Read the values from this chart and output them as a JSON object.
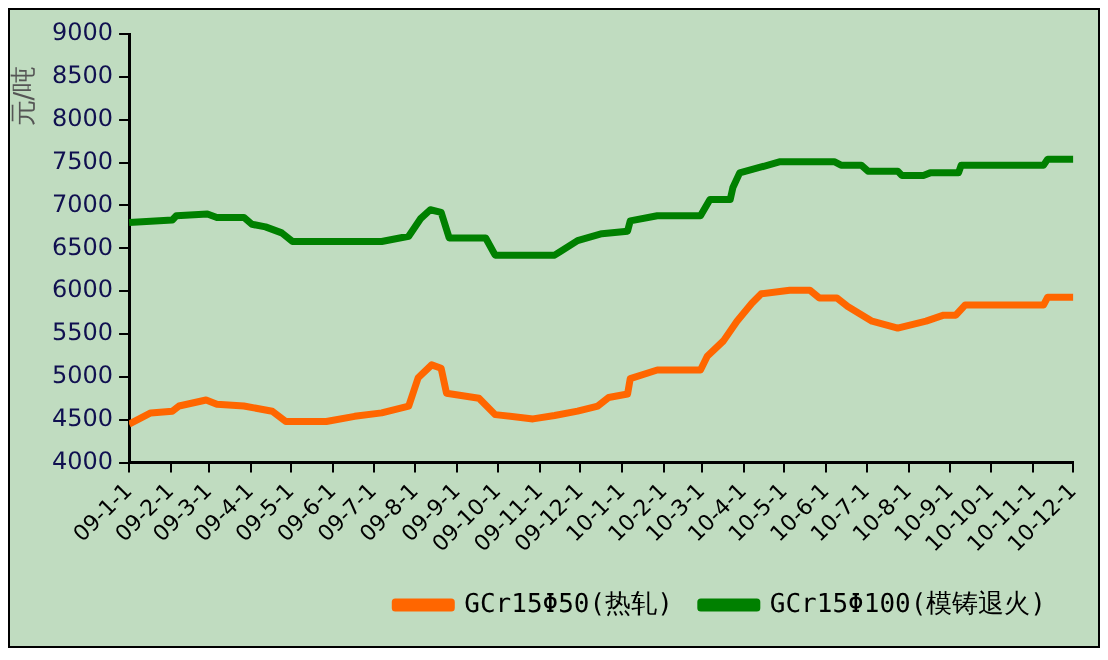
{
  "chart_data": {
    "type": "line",
    "ylabel": "元/吨",
    "ylim": [
      4000,
      9000
    ],
    "yticks": [
      4000,
      4500,
      5000,
      5500,
      6000,
      6500,
      7000,
      7500,
      8000,
      8500,
      9000
    ],
    "xlim": [
      "2009-01-01",
      "2010-12-01"
    ],
    "xticks": [
      {
        "value": "2009-01-01",
        "label": "09-1-1"
      },
      {
        "value": "2009-02-01",
        "label": "09-2-1"
      },
      {
        "value": "2009-03-01",
        "label": "09-3-1"
      },
      {
        "value": "2009-04-01",
        "label": "09-4-1"
      },
      {
        "value": "2009-05-01",
        "label": "09-5-1"
      },
      {
        "value": "2009-06-01",
        "label": "09-6-1"
      },
      {
        "value": "2009-07-01",
        "label": "09-7-1"
      },
      {
        "value": "2009-08-01",
        "label": "09-8-1"
      },
      {
        "value": "2009-09-01",
        "label": "09-9-1"
      },
      {
        "value": "2009-10-01",
        "label": "09-10-1"
      },
      {
        "value": "2009-11-01",
        "label": "09-11-1"
      },
      {
        "value": "2009-12-01",
        "label": "09-12-1"
      },
      {
        "value": "2010-01-01",
        "label": "10-1-1"
      },
      {
        "value": "2010-02-01",
        "label": "10-2-1"
      },
      {
        "value": "2010-03-01",
        "label": "10-3-1"
      },
      {
        "value": "2010-04-01",
        "label": "10-4-1"
      },
      {
        "value": "2010-05-01",
        "label": "10-5-1"
      },
      {
        "value": "2010-06-01",
        "label": "10-6-1"
      },
      {
        "value": "2010-07-01",
        "label": "10-7-1"
      },
      {
        "value": "2010-08-01",
        "label": "10-8-1"
      },
      {
        "value": "2010-09-01",
        "label": "10-9-1"
      },
      {
        "value": "2010-10-01",
        "label": "10-10-1"
      },
      {
        "value": "2010-11-01",
        "label": "10-11-1"
      },
      {
        "value": "2010-12-01",
        "label": "10-12-1"
      }
    ],
    "legend": "bottom",
    "marker": "none",
    "line_style": "solid",
    "series": [
      {
        "name": "GCr15Φ50(热轧)",
        "color": "#ff6600",
        "x": [
          "2009-01-01",
          "2009-01-17",
          "2009-02-02",
          "2009-02-07",
          "2009-02-27",
          "2009-03-07",
          "2009-03-27",
          "2009-04-17",
          "2009-04-27",
          "2009-05-27",
          "2009-06-17",
          "2009-07-07",
          "2009-07-27",
          "2009-08-03",
          "2009-08-13",
          "2009-08-20",
          "2009-08-24",
          "2009-09-17",
          "2009-09-29",
          "2009-10-27",
          "2009-11-12",
          "2009-11-29",
          "2009-12-14",
          "2009-12-22",
          "2010-01-05",
          "2010-01-07",
          "2010-01-27",
          "2010-02-28",
          "2010-03-05",
          "2010-03-17",
          "2010-03-27",
          "2010-04-07",
          "2010-04-14",
          "2010-05-05",
          "2010-05-20",
          "2010-05-27",
          "2010-06-09",
          "2010-06-17",
          "2010-07-05",
          "2010-07-24",
          "2010-08-14",
          "2010-08-27",
          "2010-09-05",
          "2010-09-12",
          "2010-11-09",
          "2010-11-12",
          "2010-12-01"
        ],
        "values": [
          4450,
          4580,
          4600,
          4660,
          4730,
          4680,
          4660,
          4600,
          4480,
          4480,
          4540,
          4580,
          4660,
          4990,
          5140,
          5100,
          4810,
          4750,
          4560,
          4510,
          4550,
          4600,
          4660,
          4760,
          4800,
          4980,
          5080,
          5080,
          5240,
          5420,
          5650,
          5860,
          5970,
          6010,
          6010,
          5920,
          5920,
          5820,
          5650,
          5570,
          5650,
          5720,
          5720,
          5840,
          5840,
          5930,
          5930
        ]
      },
      {
        "name": "GCr15Φ100(模铸退火)",
        "color": "#008000",
        "x": [
          "2009-01-01",
          "2009-02-02",
          "2009-02-05",
          "2009-02-28",
          "2009-03-07",
          "2009-03-27",
          "2009-04-02",
          "2009-04-12",
          "2009-04-24",
          "2009-05-02",
          "2009-07-07",
          "2009-07-27",
          "2009-08-05",
          "2009-08-12",
          "2009-08-20",
          "2009-08-26",
          "2009-09-22",
          "2009-09-29",
          "2009-11-12",
          "2009-11-29",
          "2009-12-17",
          "2010-01-05",
          "2010-01-07",
          "2010-01-27",
          "2010-02-28",
          "2010-03-07",
          "2010-03-22",
          "2010-03-24",
          "2010-03-29",
          "2010-04-12",
          "2010-04-28",
          "2010-06-07",
          "2010-06-12",
          "2010-06-27",
          "2010-07-02",
          "2010-07-24",
          "2010-07-27",
          "2010-08-12",
          "2010-08-17",
          "2010-09-07",
          "2010-09-09",
          "2010-11-09",
          "2010-11-12",
          "2010-12-01"
        ],
        "values": [
          6800,
          6830,
          6880,
          6900,
          6860,
          6860,
          6780,
          6750,
          6680,
          6580,
          6580,
          6640,
          6850,
          6950,
          6920,
          6620,
          6620,
          6420,
          6420,
          6590,
          6670,
          6700,
          6820,
          6880,
          6880,
          7070,
          7070,
          7210,
          7380,
          7440,
          7510,
          7510,
          7470,
          7470,
          7400,
          7400,
          7350,
          7350,
          7380,
          7380,
          7470,
          7470,
          7540,
          7540
        ]
      }
    ]
  }
}
